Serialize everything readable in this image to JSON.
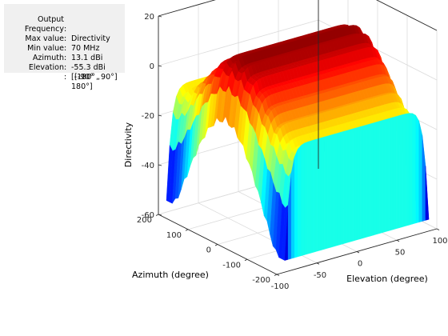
{
  "info_panel": {
    "rows": [
      {
        "key": "Output",
        "value": "Directivity"
      },
      {
        "key": "Frequency",
        "value": "70 MHz"
      },
      {
        "key": "Max value",
        "value": "13.1 dBi"
      },
      {
        "key": "Min value",
        "value": "-55.3 dBi"
      },
      {
        "key": "Azimuth",
        "value": "[-180° ,"
      },
      {
        "key": "Elevation",
        "value": "180°]"
      },
      {
        "key": "",
        "value": "[-90° , 90°]"
      }
    ]
  },
  "chart_data": {
    "type": "surface",
    "zlabel": "Directivity",
    "xlabel": "Elevation (degree)",
    "ylabel": "Azimuth (degree)",
    "xlim": [
      -100,
      100
    ],
    "ylim": [
      -200,
      200
    ],
    "zlim": [
      -60,
      20
    ],
    "x_ticks": [
      "-100",
      "-50",
      "0",
      "50",
      "100"
    ],
    "y_ticks": [
      "-200",
      "-100",
      "0",
      "100",
      "200"
    ],
    "z_ticks": [
      "20",
      "0",
      "-20",
      "-40",
      "-60"
    ],
    "z_max": 13.1,
    "z_min": -55.3,
    "colormap": "jet",
    "grid": true
  }
}
